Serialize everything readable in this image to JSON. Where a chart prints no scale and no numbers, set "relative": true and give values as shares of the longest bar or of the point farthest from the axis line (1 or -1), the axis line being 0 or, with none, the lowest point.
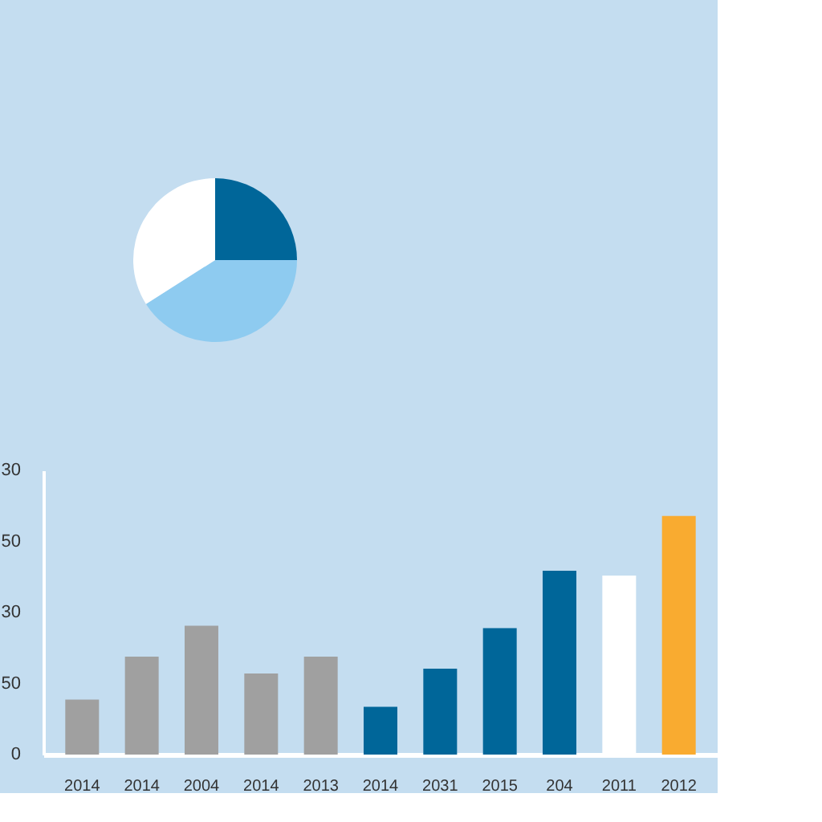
{
  "chart_data": [
    {
      "type": "pie",
      "relative": true,
      "categories": [
        null,
        null,
        null
      ],
      "values": [
        25,
        41,
        34
      ],
      "colors": [
        "#006699",
        "#8ecbf0",
        "#ffffff"
      ],
      "legend": false
    },
    {
      "type": "bar",
      "categories": [
        "2014",
        "2014",
        "2004",
        "2014",
        "2013",
        "2014",
        "2031",
        "2015",
        "204",
        "2011",
        "2012"
      ],
      "values": [
        0.23,
        0.41,
        0.54,
        0.34,
        0.41,
        0.2,
        0.36,
        0.53,
        0.77,
        0.75,
        1
      ],
      "relative": true,
      "annotations": [
        "30",
        "50",
        "30",
        "50",
        "0"
      ],
      "colors": [
        "#a0a0a0",
        "#a0a0a0",
        "#a0a0a0",
        "#a0a0a0",
        "#a0a0a0",
        "#006699",
        "#006699",
        "#006699",
        "#006699",
        "#ffffff",
        "#f9ab30"
      ],
      "grid": false,
      "legend": false
    }
  ]
}
